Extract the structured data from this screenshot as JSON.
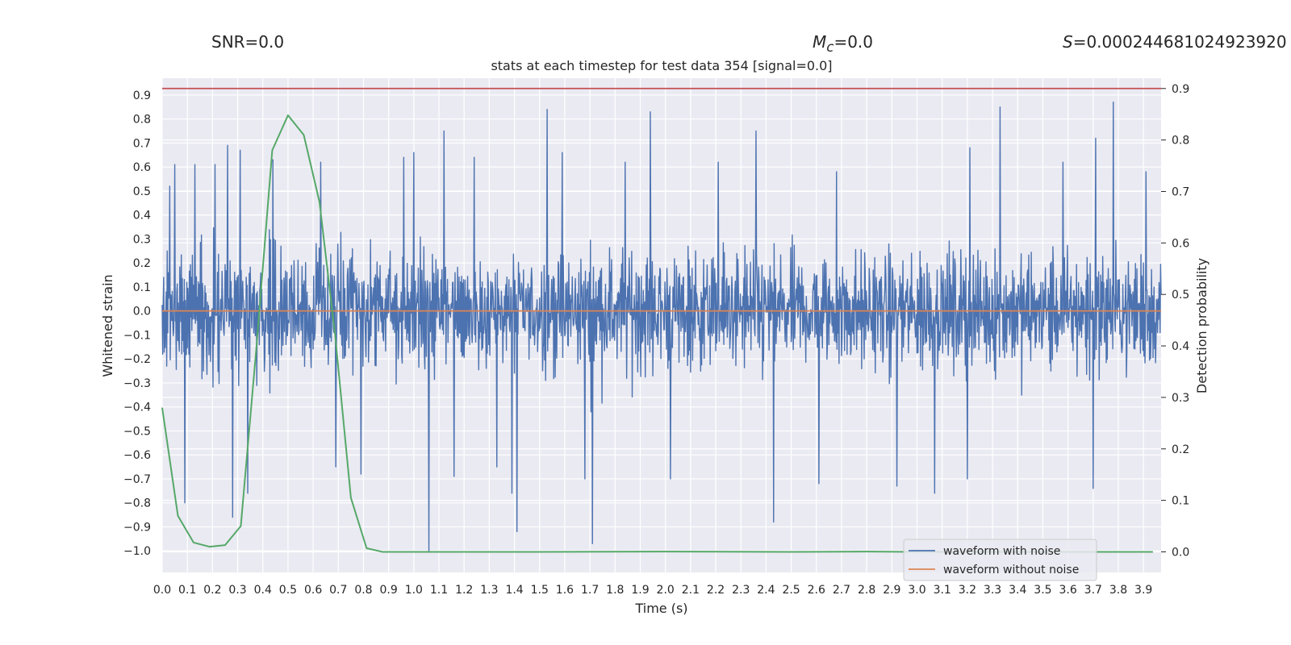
{
  "stats": {
    "snr_label": "SNR=0.0",
    "mc_symbol": "M",
    "mc_subscript": "c",
    "mc_value": "=0.0",
    "s_symbol": "S",
    "s_value": "=0.000244681024923920"
  },
  "chart_data": {
    "type": "line",
    "title": "stats at each timestep for test data 354 [signal=0.0]",
    "xlabel": "Time (s)",
    "ylabel": "Whitened strain",
    "y2label": "Detection probability",
    "xlim": [
      0.0,
      3.97
    ],
    "ylim": [
      -1.09,
      0.97
    ],
    "y2lim": [
      -0.04,
      0.92
    ],
    "x_ticks": [
      "0.0",
      "0.1",
      "0.2",
      "0.3",
      "0.4",
      "0.5",
      "0.6",
      "0.7",
      "0.8",
      "0.9",
      "1.0",
      "1.1",
      "1.2",
      "1.3",
      "1.4",
      "1.5",
      "1.6",
      "1.7",
      "1.8",
      "1.9",
      "2.0",
      "2.1",
      "2.2",
      "2.3",
      "2.4",
      "2.5",
      "2.6",
      "2.7",
      "2.8",
      "2.9",
      "3.0",
      "3.1",
      "3.2",
      "3.3",
      "3.4",
      "3.5",
      "3.6",
      "3.7",
      "3.8",
      "3.9"
    ],
    "y_ticks": [
      "0.9",
      "0.8",
      "0.7",
      "0.6",
      "0.5",
      "0.4",
      "0.3",
      "0.2",
      "0.1",
      "0.0",
      "−0.1",
      "−0.2",
      "−0.3",
      "−0.4",
      "−0.5",
      "−0.6",
      "−0.7",
      "−0.8",
      "−0.9",
      "−1.0"
    ],
    "y2_ticks": [
      "0.9",
      "0.8",
      "0.7",
      "0.6",
      "0.5",
      "0.4",
      "0.3",
      "0.2",
      "0.1",
      "0.0"
    ],
    "grid": true,
    "legend_position": "bottom-right",
    "threshold": {
      "value": 0.9,
      "axis": "right",
      "color": "#c44e52"
    },
    "series": [
      {
        "name": "waveform with noise",
        "color": "#4c72b0",
        "axis": "left",
        "description": "noisy whitened strain, dense oscillation sampled every 0.002 s",
        "spikes": [
          {
            "x": 0.03,
            "y": 0.52
          },
          {
            "x": 0.05,
            "y": 0.61
          },
          {
            "x": 0.09,
            "y": -0.8
          },
          {
            "x": 0.13,
            "y": 0.61
          },
          {
            "x": 0.21,
            "y": 0.61
          },
          {
            "x": 0.26,
            "y": 0.69
          },
          {
            "x": 0.28,
            "y": -0.86
          },
          {
            "x": 0.31,
            "y": 0.67
          },
          {
            "x": 0.34,
            "y": -0.76
          },
          {
            "x": 0.44,
            "y": 0.63
          },
          {
            "x": 0.63,
            "y": 0.62
          },
          {
            "x": 0.69,
            "y": -0.65
          },
          {
            "x": 0.79,
            "y": -0.68
          },
          {
            "x": 0.96,
            "y": 0.64
          },
          {
            "x": 1.0,
            "y": 0.66
          },
          {
            "x": 1.06,
            "y": -1.0
          },
          {
            "x": 1.12,
            "y": 0.75
          },
          {
            "x": 1.16,
            "y": -0.69
          },
          {
            "x": 1.24,
            "y": 0.64
          },
          {
            "x": 1.33,
            "y": -0.65
          },
          {
            "x": 1.39,
            "y": -0.76
          },
          {
            "x": 1.41,
            "y": -0.92
          },
          {
            "x": 1.53,
            "y": 0.84
          },
          {
            "x": 1.59,
            "y": 0.66
          },
          {
            "x": 1.68,
            "y": -0.7
          },
          {
            "x": 1.71,
            "y": -0.97
          },
          {
            "x": 1.84,
            "y": 0.62
          },
          {
            "x": 1.94,
            "y": 0.83
          },
          {
            "x": 2.02,
            "y": -0.7
          },
          {
            "x": 2.21,
            "y": 0.62
          },
          {
            "x": 2.36,
            "y": 0.75
          },
          {
            "x": 2.43,
            "y": -0.88
          },
          {
            "x": 2.61,
            "y": -0.72
          },
          {
            "x": 2.68,
            "y": 0.58
          },
          {
            "x": 2.92,
            "y": -0.73
          },
          {
            "x": 3.07,
            "y": -0.76
          },
          {
            "x": 3.2,
            "y": -0.7
          },
          {
            "x": 3.21,
            "y": 0.68
          },
          {
            "x": 3.33,
            "y": 0.85
          },
          {
            "x": 3.58,
            "y": 0.62
          },
          {
            "x": 3.7,
            "y": -0.74
          },
          {
            "x": 3.71,
            "y": 0.72
          },
          {
            "x": 3.78,
            "y": 0.87
          },
          {
            "x": 3.91,
            "y": 0.58
          }
        ]
      },
      {
        "name": "waveform without noise",
        "color": "#dd8452",
        "axis": "left",
        "x": [
          0.0,
          3.97
        ],
        "y": [
          0.0,
          0.0
        ]
      },
      {
        "name": "",
        "color": "#55a868",
        "axis": "right",
        "x": [
          0.0,
          0.0625,
          0.125,
          0.1875,
          0.25,
          0.3125,
          0.375,
          0.4375,
          0.5,
          0.5625,
          0.625,
          0.6875,
          0.75,
          0.8125,
          0.875,
          1.0,
          1.5,
          2.0,
          2.5,
          2.8,
          3.0,
          3.5,
          3.9375
        ],
        "y": [
          0.28,
          0.07,
          0.018,
          0.01,
          0.013,
          0.05,
          0.4,
          0.78,
          0.848,
          0.81,
          0.68,
          0.42,
          0.105,
          0.007,
          0.0,
          0.0,
          0.0,
          0.0005,
          0.0,
          0.0005,
          0.0,
          0.0,
          0.0
        ]
      }
    ]
  }
}
